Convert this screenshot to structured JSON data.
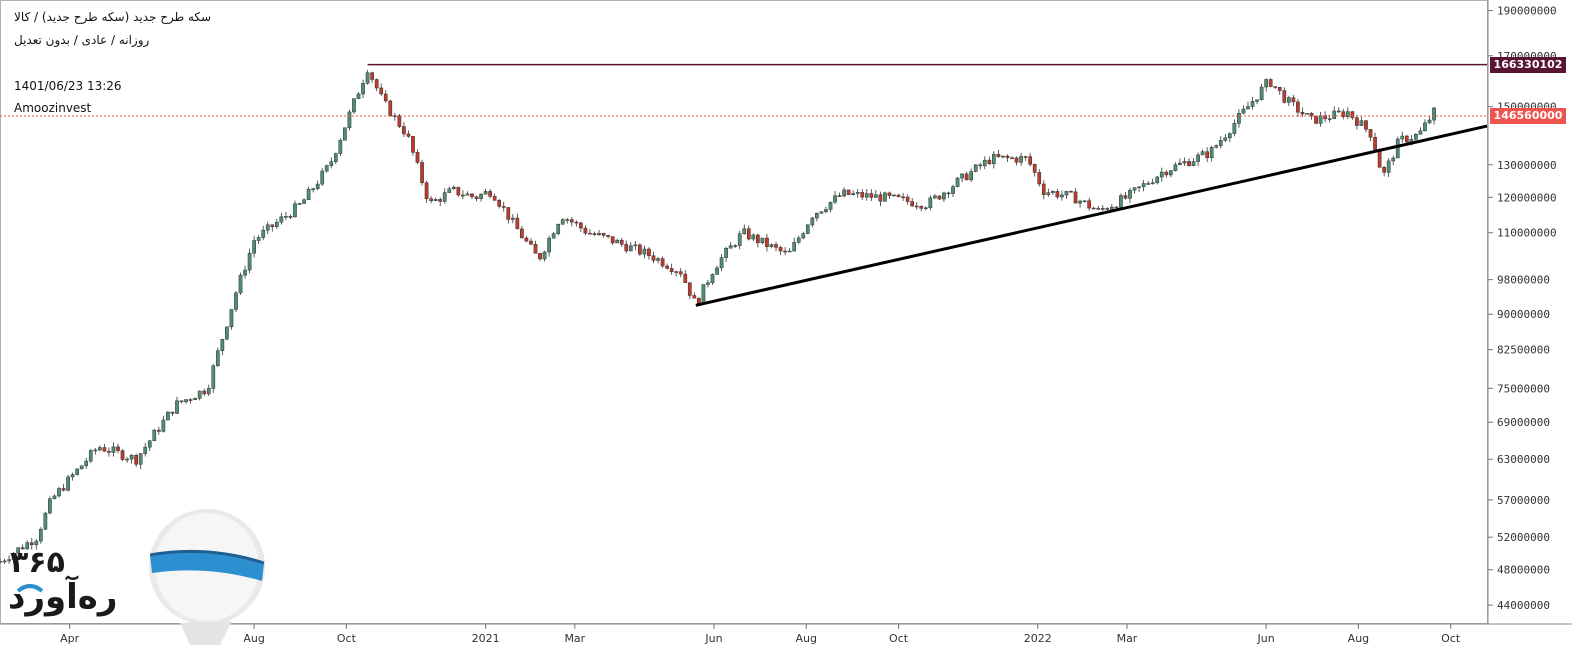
{
  "header": {
    "symbol_line": "سکه طرح جدید (سکه طرح جدید) / کالا",
    "settings_line": "روزانه / عادی / بدون تعدیل",
    "timestamp": "1401/06/23 13:26",
    "source": "Amoozinvest"
  },
  "price_tags": {
    "resistance": "166330102",
    "last": "146560000",
    "resistance_color": "#5a1433",
    "last_color": "#ef5350"
  },
  "logo": {
    "name": "ره‌آورد",
    "number": "۳۶۵",
    "tagline": "ره‌آورد ۳۶۵"
  },
  "colors": {
    "up": "#4e8f73",
    "down": "#c0392b",
    "resistance": "#5a1433",
    "trendline": "#000000",
    "last_price_line": "#ef5350"
  },
  "chart_data": {
    "type": "candlestick",
    "y_scale": "log",
    "ylim": [
      42000000,
      195000000
    ],
    "y_ticks": [
      44000000,
      48000000,
      52000000,
      57000000,
      63000000,
      69000000,
      75000000,
      82500000,
      90000000,
      98000000,
      110000000,
      120000000,
      130000000,
      150000000,
      170000000,
      190000000
    ],
    "y_tick_labels": [
      "44000000",
      "48000000",
      "52000000",
      "57000000",
      "63000000",
      "69000000",
      "75000000",
      "82500000",
      "90000000",
      "98000000",
      "110000000",
      "120000000",
      "130000000",
      "150000000",
      "170000000",
      "190000000"
    ],
    "x_tick_labels": [
      "Apr",
      "Aug",
      "Oct",
      "2021",
      "Mar",
      "Jun",
      "Aug",
      "Oct",
      "2022",
      "Mar",
      "Jun",
      "Aug",
      "Oct"
    ],
    "x_tick_dates": [
      "2020-04-01",
      "2020-08-01",
      "2020-10-01",
      "2021-01-01",
      "2021-03-01",
      "2021-06-01",
      "2021-08-01",
      "2021-10-01",
      "2022-01-01",
      "2022-03-01",
      "2022-06-01",
      "2022-08-01",
      "2022-10-01"
    ],
    "xlim": [
      "2020-02-15",
      "2022-10-25"
    ],
    "price_path": [
      [
        "2020-02-15",
        49000000
      ],
      [
        "2020-03-10",
        52000000
      ],
      [
        "2020-03-20",
        57000000
      ],
      [
        "2020-04-01",
        60000000
      ],
      [
        "2020-04-20",
        65000000
      ],
      [
        "2020-05-15",
        63000000
      ],
      [
        "2020-06-10",
        72000000
      ],
      [
        "2020-07-01",
        75000000
      ],
      [
        "2020-07-20",
        95000000
      ],
      [
        "2020-08-01",
        108000000
      ],
      [
        "2020-09-01",
        118000000
      ],
      [
        "2020-09-20",
        130000000
      ],
      [
        "2020-10-05",
        150000000
      ],
      [
        "2020-10-15",
        165000000
      ],
      [
        "2020-10-25",
        152000000
      ],
      [
        "2020-11-10",
        140000000
      ],
      [
        "2020-11-25",
        118000000
      ],
      [
        "2020-12-10",
        122000000
      ],
      [
        "2020-12-25",
        120000000
      ],
      [
        "2021-01-05",
        122000000
      ],
      [
        "2021-01-20",
        112000000
      ],
      [
        "2021-02-05",
        103000000
      ],
      [
        "2021-02-20",
        115000000
      ],
      [
        "2021-03-10",
        110000000
      ],
      [
        "2021-03-25",
        108000000
      ],
      [
        "2021-04-20",
        104000000
      ],
      [
        "2021-05-10",
        100000000
      ],
      [
        "2021-05-20",
        92000000
      ],
      [
        "2021-06-01",
        101000000
      ],
      [
        "2021-06-20",
        110000000
      ],
      [
        "2021-07-20",
        104000000
      ],
      [
        "2021-08-05",
        115000000
      ],
      [
        "2021-08-25",
        121000000
      ],
      [
        "2021-09-20",
        120000000
      ],
      [
        "2021-10-20",
        118000000
      ],
      [
        "2021-11-10",
        125000000
      ],
      [
        "2021-12-01",
        132000000
      ],
      [
        "2021-12-25",
        132000000
      ],
      [
        "2022-01-05",
        122000000
      ],
      [
        "2022-01-25",
        120000000
      ],
      [
        "2022-02-10",
        116000000
      ],
      [
        "2022-03-01",
        120000000
      ],
      [
        "2022-03-25",
        128000000
      ],
      [
        "2022-04-25",
        134000000
      ],
      [
        "2022-05-20",
        150000000
      ],
      [
        "2022-06-03",
        160000000
      ],
      [
        "2022-06-15",
        152000000
      ],
      [
        "2022-07-01",
        145000000
      ],
      [
        "2022-07-25",
        148000000
      ],
      [
        "2022-08-10",
        140000000
      ],
      [
        "2022-08-17",
        126000000
      ],
      [
        "2022-08-28",
        138000000
      ],
      [
        "2022-09-10",
        140000000
      ],
      [
        "2022-09-20",
        148000000
      ]
    ],
    "resistance_level": 166330102,
    "resistance_start": "2020-10-15",
    "last_price": 146560000,
    "trendline": [
      [
        "2021-05-20",
        92000000
      ],
      [
        "2022-10-25",
        143000000
      ]
    ]
  }
}
